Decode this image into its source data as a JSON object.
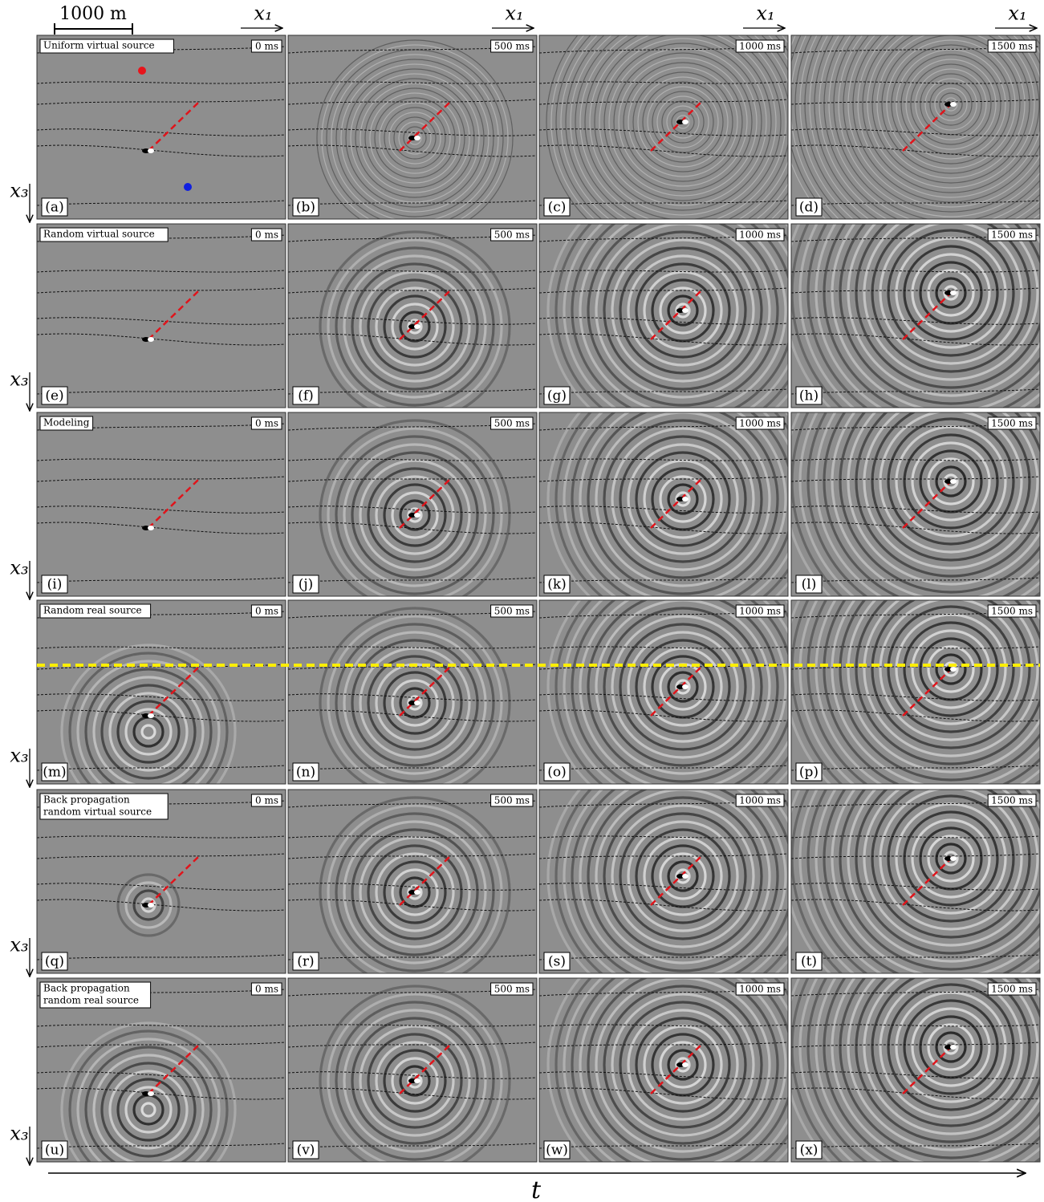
{
  "scale_bar": "1000 m",
  "x_axis_label": "x₁",
  "depth_axis_label": "x₃",
  "time_axis_label": "t",
  "times": [
    "0 ms",
    "500 ms",
    "1000 ms",
    "1500 ms"
  ],
  "rows": [
    {
      "title": [
        "Uniform virtual source"
      ],
      "letters": [
        "(a)",
        "(b)",
        "(c)",
        "(d)"
      ]
    },
    {
      "title": [
        "Random virtual source"
      ],
      "letters": [
        "(e)",
        "(f)",
        "(g)",
        "(h)"
      ]
    },
    {
      "title": [
        "Modeling"
      ],
      "letters": [
        "(i)",
        "(j)",
        "(k)",
        "(l)"
      ]
    },
    {
      "title": [
        "Random real source"
      ],
      "letters": [
        "(m)",
        "(n)",
        "(o)",
        "(p)"
      ]
    },
    {
      "title": [
        "Back propagation",
        "random virtual source"
      ],
      "letters": [
        "(q)",
        "(r)",
        "(s)",
        "(t)"
      ]
    },
    {
      "title": [
        "Back propagation",
        "random real source"
      ],
      "letters": [
        "(u)",
        "(v)",
        "(w)",
        "(x)"
      ]
    }
  ]
}
